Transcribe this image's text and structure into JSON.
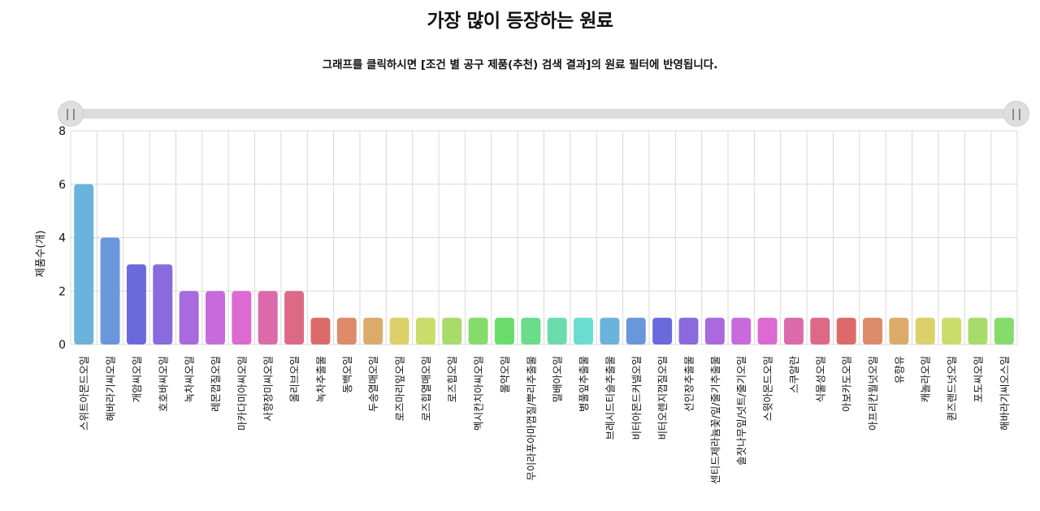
{
  "title": "가장 많이 등장하는 원료",
  "subtitle": "그래프를 클릭하시면 [조건 별 공구 제품(추천) 검색 결과]의 원료 필터에 반영됩니다.",
  "slider": {
    "left_label": "||",
    "right_label": "||",
    "range": [
      0,
      1
    ]
  },
  "chart_data": {
    "type": "bar",
    "title": "",
    "xlabel": "",
    "ylabel": "제품수(개)",
    "ylim": [
      0,
      8
    ],
    "yticks": [
      0,
      2,
      4,
      6,
      8
    ],
    "grid": true,
    "categories": [
      "스위트아몬드오일",
      "해바라기씨오일",
      "개암씨오일",
      "호호바씨오일",
      "녹차씨오일",
      "레몬껍질오일",
      "마카다미아씨오일",
      "사향장미씨오일",
      "올리브오일",
      "녹차추출물",
      "동백오일",
      "두송열매오일",
      "로즈마리잎오일",
      "로즈힙열매오일",
      "로즈힙오일",
      "멕시칸치아씨오일",
      "몰약오일",
      "무이라푸아마껍질/뿌리추출물",
      "밀배아오일",
      "병풀잎추출물",
      "브레시드티슬추출물",
      "비터아몬드커넬오일",
      "비터오렌지껍질오일",
      "선인장추출물",
      "센티드제라늄꽃/잎/줄기추출물",
      "솔잣나무잎/넛트/줄기오일",
      "스윗아몬드오일",
      "스쿠알란",
      "식물성오일",
      "아보카도오일",
      "아프리칸월넛오일",
      "유향유",
      "캐놀라오일",
      "퀸즈랜드넛오일",
      "포도씨오일",
      "해바라기씨오스일"
    ],
    "values": [
      6,
      4,
      3,
      3,
      2,
      2,
      2,
      2,
      2,
      1,
      1,
      1,
      1,
      1,
      1,
      1,
      1,
      1,
      1,
      1,
      1,
      1,
      1,
      1,
      1,
      1,
      1,
      1,
      1,
      1,
      1,
      1,
      1,
      1,
      1,
      1
    ],
    "colors": [
      "#6ab4dc",
      "#6a96dc",
      "#6a6adc",
      "#8a6adc",
      "#a86adc",
      "#c86adc",
      "#dc6ad0",
      "#dc6aab",
      "#dc6a86",
      "#dc6a6a",
      "#dc8a6a",
      "#dcab6a",
      "#dcd06a",
      "#cadc6a",
      "#a8dc6a",
      "#86dc6a",
      "#6adc6a",
      "#6adc8a",
      "#6adcab",
      "#6adcd0",
      "#6ab4dc",
      "#6a96dc",
      "#6a6adc",
      "#8a6adc",
      "#a86adc",
      "#c86adc",
      "#dc6ad0",
      "#dc6aab",
      "#dc6a86",
      "#dc6a6a",
      "#dc8a6a",
      "#dcab6a",
      "#dcd06a",
      "#cadc6a",
      "#a8dc6a",
      "#86dc6a"
    ]
  }
}
